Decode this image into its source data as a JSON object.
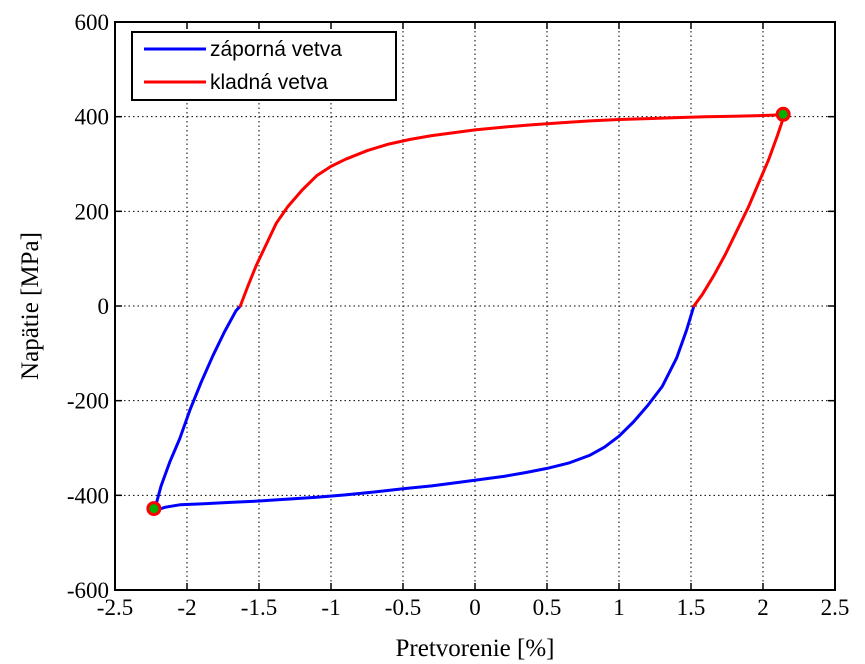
{
  "chart_data": {
    "type": "line",
    "xlabel": "Pretvorenie [%]",
    "ylabel": "Napätie [MPa]",
    "xlim": [
      -2.5,
      2.5
    ],
    "ylim": [
      -600,
      600
    ],
    "x_ticks": [
      -2.5,
      -2,
      -1.5,
      -1,
      -0.5,
      0,
      0.5,
      1,
      1.5,
      2,
      2.5
    ],
    "y_ticks": [
      -600,
      -400,
      -200,
      0,
      200,
      400,
      600
    ],
    "x_tick_labels": [
      "-2.5",
      "-2",
      "-1.5",
      "-1",
      "-0.5",
      "0",
      "0.5",
      "1",
      "1.5",
      "2",
      "2.5"
    ],
    "y_tick_labels": [
      "-600",
      "-400",
      "-200",
      "0",
      "200",
      "400",
      "600"
    ],
    "grid": true,
    "legend_position": "top-left",
    "series": [
      {
        "name": "záporná vetva",
        "color": "#0000ff",
        "x": [
          1.52,
          1.47,
          1.4,
          1.3,
          1.2,
          1.1,
          1.0,
          0.9,
          0.8,
          0.65,
          0.5,
          0.35,
          0.2,
          0.05,
          -0.1,
          -0.3,
          -0.5,
          -0.7,
          -0.9,
          -1.1,
          -1.3,
          -1.5,
          -1.7,
          -1.9,
          -2.05,
          -2.15,
          -2.2,
          -2.22
        ],
        "y": [
          0,
          -50,
          -110,
          -170,
          -210,
          -245,
          -275,
          -298,
          -315,
          -332,
          -343,
          -352,
          -360,
          -366,
          -372,
          -380,
          -386,
          -393,
          -399,
          -404,
          -408,
          -412,
          -415,
          -418,
          -420,
          -425,
          -430,
          -425
        ]
      },
      {
        "name": "",
        "color": "#0000ff",
        "x": [
          -2.22,
          -2.18,
          -2.12,
          -2.05,
          -1.98,
          -1.9,
          -1.82,
          -1.74,
          -1.66,
          -1.63
        ],
        "y": [
          -425,
          -380,
          -330,
          -280,
          -220,
          -160,
          -105,
          -55,
          -10,
          0
        ]
      },
      {
        "name": "kladná vetva",
        "color": "#ff0000",
        "x": [
          -1.63,
          -1.58,
          -1.52,
          -1.45,
          -1.38,
          -1.3,
          -1.2,
          -1.1,
          -1.0,
          -0.9,
          -0.75,
          -0.6,
          -0.45,
          -0.3,
          -0.15,
          0.0,
          0.2,
          0.4,
          0.6,
          0.8,
          1.0,
          1.2,
          1.4,
          1.6,
          1.8,
          1.95,
          2.05,
          2.12,
          2.15
        ],
        "y": [
          0,
          40,
          85,
          130,
          175,
          210,
          245,
          275,
          295,
          310,
          328,
          342,
          352,
          360,
          366,
          372,
          378,
          383,
          387,
          391,
          394,
          396,
          398,
          400,
          401,
          402,
          403,
          404,
          405
        ]
      },
      {
        "name": "",
        "color": "#ff0000",
        "x": [
          2.15,
          2.1,
          2.04,
          1.97,
          1.9,
          1.82,
          1.74,
          1.66,
          1.58,
          1.52
        ],
        "y": [
          405,
          360,
          310,
          260,
          210,
          160,
          110,
          65,
          25,
          0
        ]
      }
    ],
    "markers": [
      {
        "x": -2.23,
        "y": -428,
        "fill": "#00b000",
        "edge": "#ff0000"
      },
      {
        "x": 2.14,
        "y": 405,
        "fill": "#00b000",
        "edge": "#ff0000"
      }
    ]
  }
}
